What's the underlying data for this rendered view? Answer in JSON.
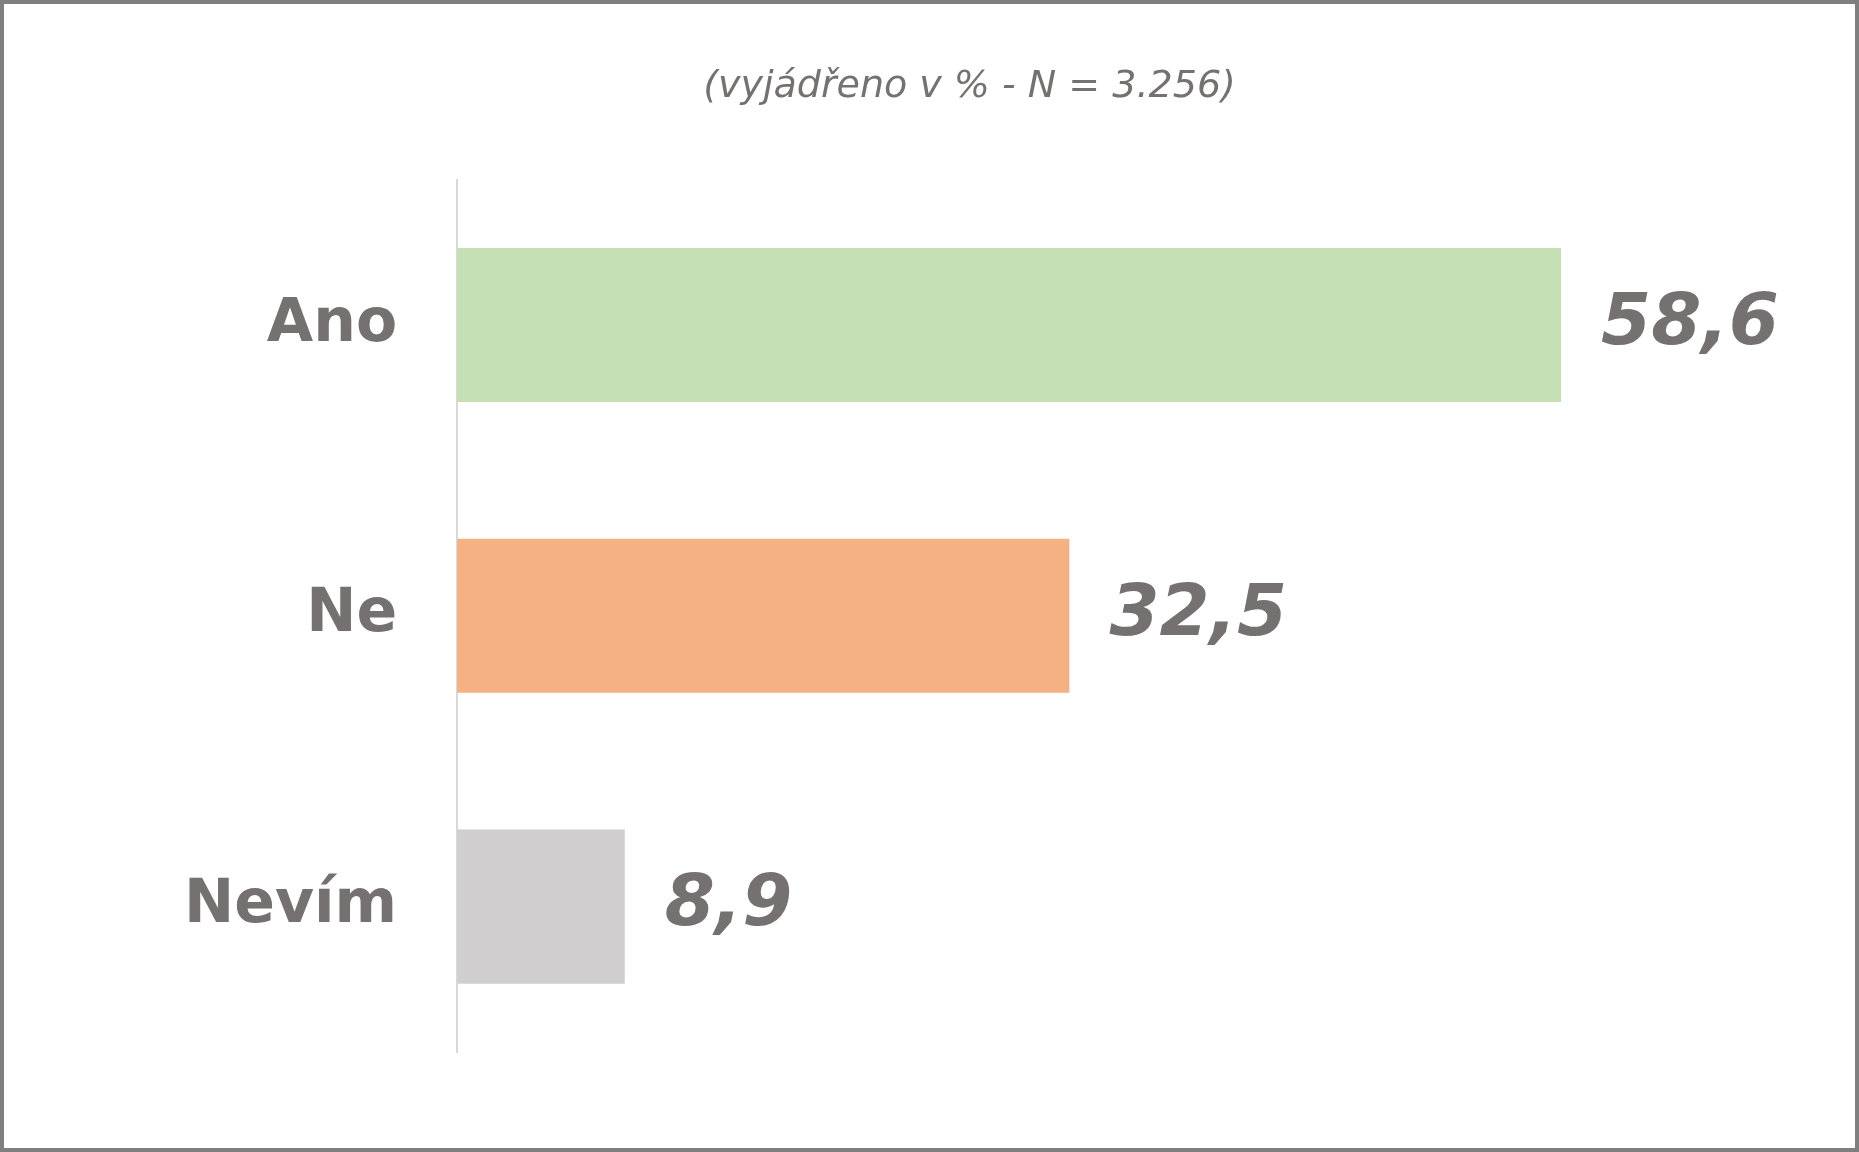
{
  "chart_data": {
    "type": "bar",
    "orientation": "horizontal",
    "title": "(vyjádřeno v % - N = 3.256)",
    "categories": [
      "Ano",
      "Ne",
      "Nevím"
    ],
    "values": [
      58.6,
      32.5,
      8.9
    ],
    "value_labels": [
      "58,6",
      "32,5",
      "8,9"
    ],
    "colors": [
      "#c5e0b4",
      "#f4b183",
      "#d0cece"
    ],
    "legend": false
  }
}
